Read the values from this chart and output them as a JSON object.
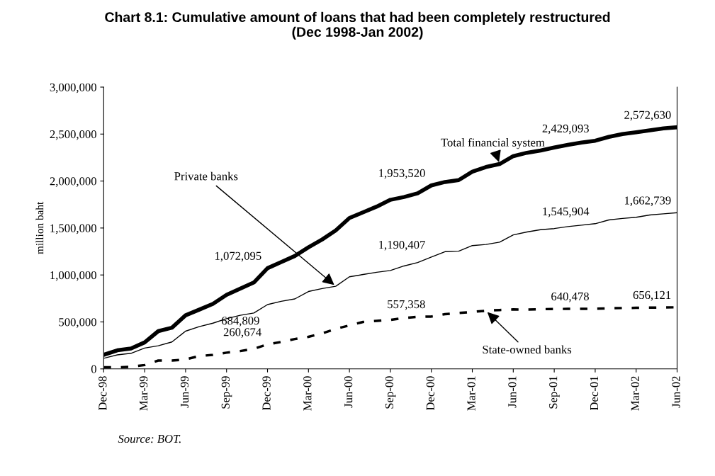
{
  "chart_data": {
    "type": "line",
    "title": "Chart 8.1: Cumulative amount of loans that had been completely restructured\n(Dec 1998-Jan 2002)",
    "ylabel": "million baht",
    "categories": [
      "Dec-98",
      null,
      null,
      "Mar-99",
      null,
      null,
      "Jun-99",
      null,
      null,
      "Sep-99",
      null,
      null,
      "Dec-99",
      null,
      null,
      "Mar-00",
      null,
      null,
      "Jun-00",
      null,
      null,
      "Sep-00",
      null,
      null,
      "Dec-00",
      null,
      null,
      "Mar-01",
      null,
      null,
      "Jun-01",
      null,
      null,
      "Sep-01",
      null,
      null,
      "Dec-01",
      null,
      null,
      "Mar-02",
      null,
      null,
      "Jun-02"
    ],
    "ylim": [
      0,
      3000000
    ],
    "yticks": [
      {
        "value": 0,
        "label": "0"
      },
      {
        "value": 500000,
        "label": "500,000"
      },
      {
        "value": 1000000,
        "label": "1,000,000"
      },
      {
        "value": 1500000,
        "label": "1,500,000"
      },
      {
        "value": 2000000,
        "label": "2,000,000"
      },
      {
        "value": 2500000,
        "label": "2,500,000"
      },
      {
        "value": 3000000,
        "label": "3,000,000"
      }
    ],
    "grid": false,
    "legend": false,
    "marker": "none",
    "series": [
      {
        "name": "Total financial system",
        "color": "#000000",
        "line_style": "solid",
        "values": [
          150000,
          198000,
          217000,
          282000,
          402000,
          439000,
          571000,
          631000,
          692000,
          788000,
          855000,
          920000,
          1072095,
          1137000,
          1202000,
          1294000,
          1378000,
          1475000,
          1607000,
          1667000,
          1728000,
          1800000,
          1830000,
          1870000,
          1953520,
          1990000,
          2010000,
          2100000,
          2149000,
          2181000,
          2265000,
          2301000,
          2325000,
          2357000,
          2385000,
          2410000,
          2429093,
          2470000,
          2500000,
          2520000,
          2540000,
          2560000,
          2572630
        ],
        "value_labels": [
          null,
          null,
          null,
          null,
          null,
          null,
          null,
          null,
          null,
          null,
          null,
          null,
          "1,072,095",
          null,
          null,
          null,
          null,
          null,
          null,
          null,
          null,
          null,
          null,
          null,
          "1,953,520",
          null,
          null,
          null,
          null,
          null,
          null,
          null,
          null,
          null,
          null,
          null,
          "2,429,093",
          null,
          null,
          null,
          null,
          null,
          "2,572,630"
        ]
      },
      {
        "name": "Private banks",
        "color": "#000000",
        "line_style": "solid",
        "values": [
          113000,
          149000,
          166000,
          222000,
          246000,
          287000,
          402000,
          450000,
          487000,
          535000,
          571000,
          595000,
          684809,
          720000,
          745000,
          824000,
          855000,
          880000,
          981000,
          1005000,
          1029000,
          1048000,
          1096000,
          1133000,
          1190407,
          1248000,
          1253000,
          1313000,
          1325000,
          1349000,
          1427000,
          1458000,
          1482000,
          1494000,
          1515000,
          1530000,
          1545904,
          1586000,
          1602000,
          1614000,
          1639000,
          1651000,
          1662739
        ],
        "value_labels": [
          null,
          null,
          null,
          null,
          null,
          null,
          null,
          null,
          null,
          null,
          null,
          null,
          "684,809",
          null,
          null,
          null,
          null,
          null,
          null,
          null,
          null,
          null,
          null,
          null,
          "1,190,407",
          null,
          null,
          null,
          null,
          null,
          null,
          null,
          null,
          null,
          null,
          null,
          "1,545,904",
          null,
          null,
          null,
          null,
          null,
          "1,662,739"
        ]
      },
      {
        "name": "State-owned banks",
        "color": "#000000",
        "line_style": "dashed",
        "values": [
          17000,
          17000,
          22000,
          41000,
          89000,
          89000,
          101000,
          137000,
          149000,
          173000,
          190000,
          214000,
          260674,
          287000,
          318000,
          342000,
          378000,
          427000,
          463000,
          500000,
          512000,
          522000,
          542000,
          554000,
          557358,
          583000,
          595000,
          607000,
          619000,
          627000,
          633000,
          632000,
          636000,
          638000,
          639000,
          640000,
          640478,
          645000,
          648000,
          650000,
          652000,
          654000,
          656121
        ],
        "value_labels": [
          null,
          null,
          null,
          null,
          null,
          null,
          null,
          null,
          null,
          null,
          null,
          null,
          "260,674",
          null,
          null,
          null,
          null,
          null,
          null,
          null,
          null,
          null,
          null,
          null,
          "557,358",
          null,
          null,
          null,
          null,
          null,
          null,
          null,
          null,
          null,
          null,
          null,
          "640,478",
          null,
          null,
          null,
          null,
          null,
          "656,121"
        ]
      }
    ],
    "annotations": [
      "Source: BOT."
    ]
  }
}
